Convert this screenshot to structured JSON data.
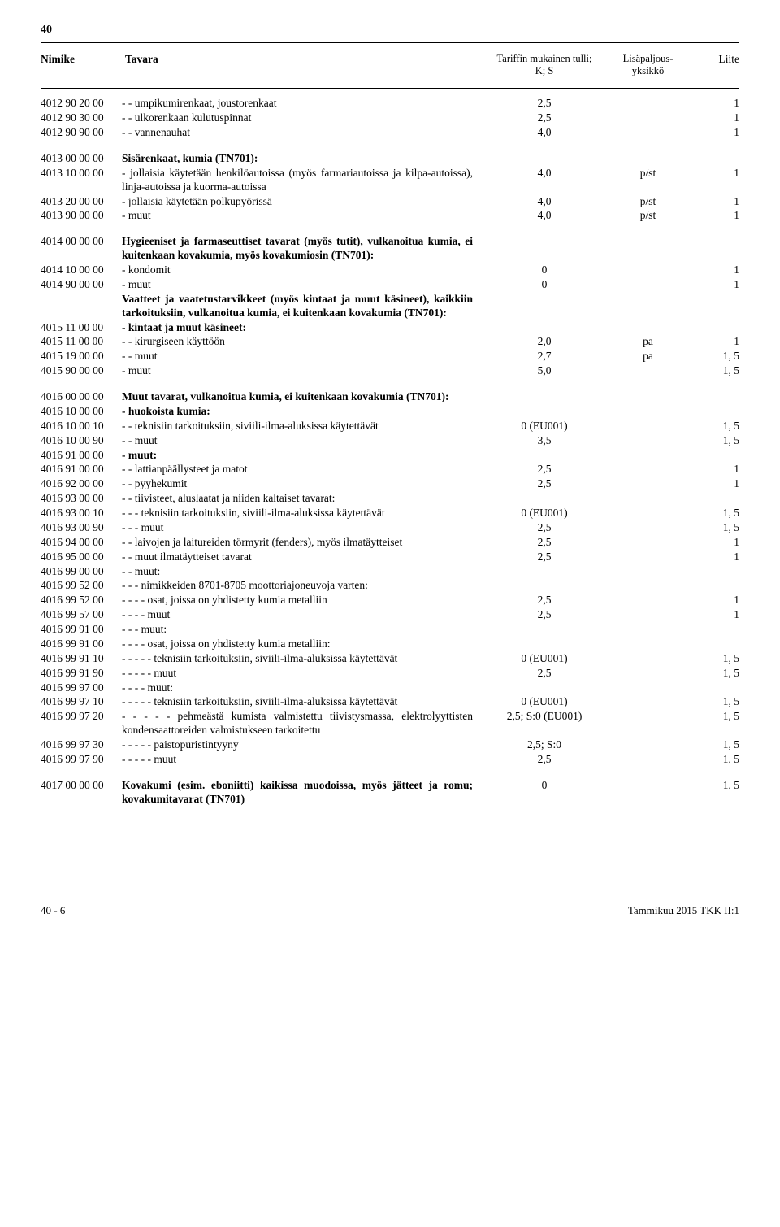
{
  "page_number_top": "40",
  "header": {
    "nimike": "Nimike",
    "tavara": "Tavara",
    "tariff_line1": "Tariffin mukainen tulli;",
    "tariff_line2": "K; S",
    "lisap_line1": "Lisäpaljous-",
    "lisap_line2": "yksikkö",
    "liite": "Liite"
  },
  "rows": [
    {
      "c1": "4012 90 20 00",
      "c2": "- - umpikumirenkaat, joustorenkaat",
      "c3": "2,5",
      "c4": "",
      "c5": "1"
    },
    {
      "c1": "4012 90 30 00",
      "c2": "- - ulkorenkaan kulutuspinnat",
      "c3": "2,5",
      "c4": "",
      "c5": "1"
    },
    {
      "c1": "4012 90 90 00",
      "c2": "- - vannenauhat",
      "c3": "4,0",
      "c4": "",
      "c5": "1"
    },
    {
      "spacer": true
    },
    {
      "c1": "4013 00 00 00",
      "c2": "Sisärenkaat, kumia (TN701):",
      "bold": true
    },
    {
      "c1": "4013 10 00 00",
      "c2": "- jollaisia käytetään henkilöautoissa (myös farmari­autoissa ja kilpa-autoissa), linja-autoissa ja kuor­ma-autoissa",
      "c3": "4,0",
      "c4": "p/st",
      "c5": "1"
    },
    {
      "c1": "4013 20 00 00",
      "c2": "- jollaisia käytetään polkupyörissä",
      "c3": "4,0",
      "c4": "p/st",
      "c5": "1"
    },
    {
      "c1": "4013 90 00 00",
      "c2": "- muut",
      "c3": "4,0",
      "c4": "p/st",
      "c5": "1"
    },
    {
      "spacer": true
    },
    {
      "c1": "4014 00 00 00",
      "c2": "Hygieeniset ja farmaseuttiset tavarat (myös tutit), vulkanoitua kumia, ei kuitenkaan kovakumia, myös kovakumiosin (TN701):",
      "bold": true
    },
    {
      "c1": "4014 10 00 00",
      "c2": "- kondomit",
      "c3": "0",
      "c4": "",
      "c5": "1"
    },
    {
      "c1": "4014 90 00 00",
      "c2": "- muut",
      "c3": "0",
      "c4": "",
      "c5": "1"
    },
    {
      "c1": "",
      "c2": "Vaatteet ja vaatetustarvikkeet (myös kintaat ja muut käsineet), kaikkiin tarkoituksiin, vulkanoitua kumia, ei kuitenkaan kovakumia (TN701):",
      "bold": true
    },
    {
      "c1": "4015 11 00 00",
      "c2": "- kintaat ja muut käsineet:",
      "bold": true
    },
    {
      "c1": "4015 11 00 00",
      "c2": "- - kirurgiseen käyttöön",
      "c3": "2,0",
      "c4": "pa",
      "c5": "1"
    },
    {
      "c1": "4015 19 00 00",
      "c2": "- - muut",
      "c3": "2,7",
      "c4": "pa",
      "c5": "1, 5"
    },
    {
      "c1": "4015 90 00 00",
      "c2": "- muut",
      "c3": "5,0",
      "c4": "",
      "c5": "1, 5"
    },
    {
      "spacer": true
    },
    {
      "c1": "4016 00 00 00",
      "c2": "Muut tavarat, vulkanoitua kumia, ei kuitenkaan ko­vakumia (TN701):",
      "bold": true
    },
    {
      "c1": "4016 10 00 00",
      "c2": "- huokoista kumia:",
      "bold": true
    },
    {
      "c1": "4016 10 00 10",
      "c2": "- - teknisiin tarkoituksiin, siviili-ilma-aluksissa käytet­tävät",
      "c3": "0 (EU001)",
      "c4": "",
      "c5": "1, 5"
    },
    {
      "c1": "4016 10 00 90",
      "c2": "- - muut",
      "c3": "3,5",
      "c4": "",
      "c5": "1, 5"
    },
    {
      "c1": "4016 91 00 00",
      "c2": "- muut:",
      "bold": true
    },
    {
      "c1": "4016 91 00 00",
      "c2": "- - lattianpäällysteet ja matot",
      "c3": "2,5",
      "c4": "",
      "c5": "1"
    },
    {
      "c1": "4016 92 00 00",
      "c2": "- - pyyhekumit",
      "c3": "2,5",
      "c4": "",
      "c5": "1"
    },
    {
      "c1": "4016 93 00 00",
      "c2": "- - tiivisteet, aluslaatat ja niiden kaltaiset tavarat:"
    },
    {
      "c1": "4016 93 00 10",
      "c2": "- - - teknisiin tarkoituksiin, siviili-ilma-aluksissa käytet­tävät",
      "c3": "0 (EU001)",
      "c4": "",
      "c5": "1, 5"
    },
    {
      "c1": "4016 93 00 90",
      "c2": "- - - muut",
      "c3": "2,5",
      "c4": "",
      "c5": "1, 5"
    },
    {
      "c1": "4016 94 00 00",
      "c2": "- - laivojen ja laitureiden törmyrit (fenders), myös ilma­täytteiset",
      "c3": "2,5",
      "c4": "",
      "c5": "1"
    },
    {
      "c1": "4016 95 00 00",
      "c2": "- - muut ilmatäytteiset tavarat",
      "c3": "2,5",
      "c4": "",
      "c5": "1"
    },
    {
      "c1": "4016 99 00 00",
      "c2": "- - muut:"
    },
    {
      "c1": "4016 99 52 00",
      "c2": "- - - nimikkeiden 8701-8705 moottoriajoneuvoja varten:"
    },
    {
      "c1": "4016 99 52 00",
      "c2": "- - - - osat, joissa on yhdistetty kumia metalliin",
      "c3": "2,5",
      "c4": "",
      "c5": "1"
    },
    {
      "c1": "4016 99 57 00",
      "c2": "- - - - muut",
      "c3": "2,5",
      "c4": "",
      "c5": "1"
    },
    {
      "c1": "4016 99 91 00",
      "c2": "- - - muut:"
    },
    {
      "c1": "4016 99 91 00",
      "c2": "- - - - osat, joissa on yhdistetty kumia metalliin:"
    },
    {
      "c1": "4016 99 91 10",
      "c2": "- - - - - teknisiin tarkoituksiin, siviili-ilma-aluksissa käy­tettävät",
      "c3": "0 (EU001)",
      "c4": "",
      "c5": "1, 5"
    },
    {
      "c1": "4016 99 91 90",
      "c2": "- - - - - muut",
      "c3": "2,5",
      "c4": "",
      "c5": "1, 5"
    },
    {
      "c1": "4016 99 97 00",
      "c2": "- - - - muut:"
    },
    {
      "c1": "4016 99 97 10",
      "c2": "- - - - - teknisiin tarkoituksiin, siviili-ilma-aluksissa käy­tettävät",
      "c3": "0 (EU001)",
      "c4": "",
      "c5": "1, 5"
    },
    {
      "c1": "4016 99 97 20",
      "c2": "- - - - - pehmeästä kumista valmistettu tiivistysmassa, elektrolyyttisten kondensaattoreiden valmistuk­seen tarkoitettu",
      "c3": "2,5; S:0 (EU001)",
      "c4": "",
      "c5": "1, 5"
    },
    {
      "c1": "4016 99 97 30",
      "c2": "- - - - - paistopuristintyyny",
      "c3": "2,5; S:0",
      "c4": "",
      "c5": "1, 5"
    },
    {
      "c1": "4016 99 97 90",
      "c2": "- - - - - muut",
      "c3": "2,5",
      "c4": "",
      "c5": "1, 5"
    },
    {
      "spacer": true
    },
    {
      "c1": "4017 00 00 00",
      "c2": "Kovakumi (esim. eboniitti) kaikissa muodoissa, myös jätteet ja romu; kovakumitavarat (TN701)",
      "bold": true,
      "c3": "0",
      "c4": "",
      "c5": "1, 5"
    }
  ],
  "footer": {
    "left": "40 - 6",
    "right": "Tammikuu 2015 TKK II:1"
  }
}
